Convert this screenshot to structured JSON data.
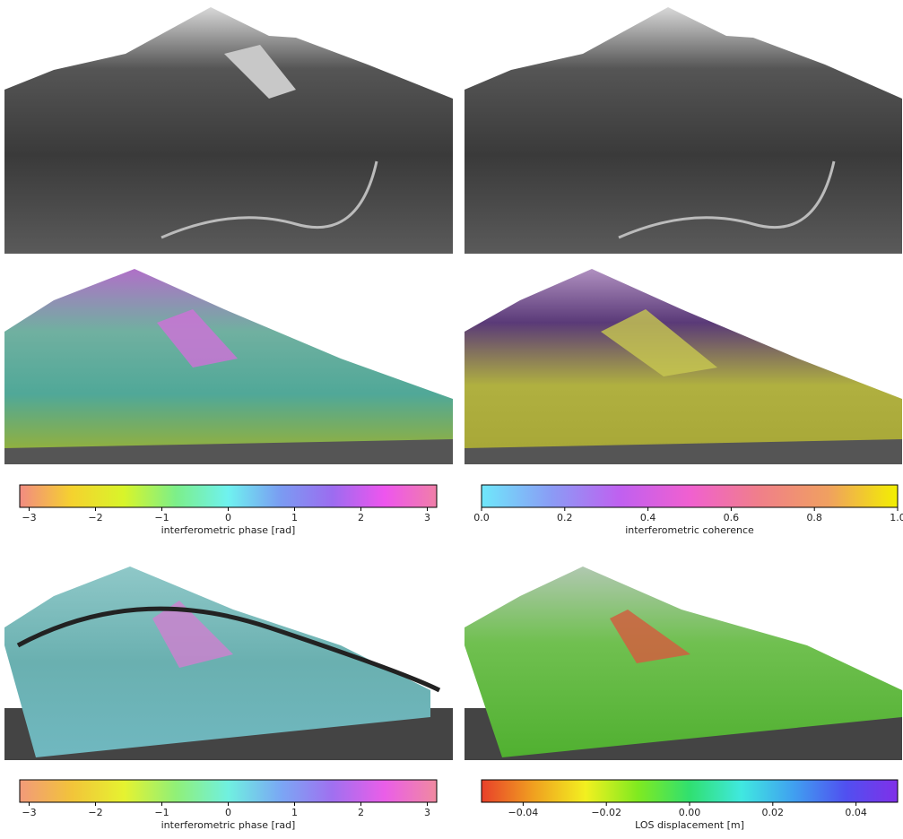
{
  "colorbars": [
    {
      "label": "interferometric phase [rad]",
      "lim": [
        -3.14159,
        3.14159
      ],
      "ticks": [
        {
          "value": -3,
          "label": "−3"
        },
        {
          "value": -2,
          "label": "−2"
        },
        {
          "value": -1,
          "label": "−1"
        },
        0,
        1,
        2,
        3
      ],
      "colors": [
        "#f28b82",
        "#f5d22e",
        "#d8f52a",
        "#7cef8a",
        "#6ff2f0",
        "#7a9cf2",
        "#9c6cf0",
        "#ee55ee",
        "#f07fa8"
      ]
    },
    {
      "label": "interferometric coherence",
      "lim": [
        0,
        1
      ],
      "ticks": [
        {
          "value": 0,
          "label": "0.0"
        },
        {
          "value": 0.2,
          "label": "0.2"
        },
        {
          "value": 0.4,
          "label": "0.4"
        },
        {
          "value": 0.6,
          "label": "0.6"
        },
        {
          "value": 0.8,
          "label": "0.8"
        },
        {
          "value": 1,
          "label": "1.0"
        }
      ],
      "colors": [
        "#6fe8fb",
        "#8a9cf5",
        "#c060f0",
        "#f060d0",
        "#f07f8a",
        "#f0a060",
        "#f2f000"
      ]
    },
    {
      "label": "interferometric phase [rad]",
      "lim": [
        -3.14159,
        3.14159
      ],
      "ticks": [
        {
          "value": -3,
          "label": "−3"
        },
        {
          "value": -2,
          "label": "−2"
        },
        {
          "value": -1,
          "label": "−1"
        },
        0,
        1,
        2,
        3
      ],
      "colors": [
        "#f29a7a",
        "#f2c43a",
        "#e6f230",
        "#90f078",
        "#70f0e0",
        "#7aa8f4",
        "#a070f0",
        "#ea5ee8",
        "#f08aa0"
      ]
    },
    {
      "label": "LOS displacement [m]",
      "lim": [
        -0.05,
        0.05
      ],
      "ticks": [
        {
          "value": -0.04,
          "label": "−0.04"
        },
        {
          "value": -0.02,
          "label": "−0.02"
        },
        {
          "value": 0,
          "label": "0.00"
        },
        {
          "value": 0.02,
          "label": "0.02"
        },
        {
          "value": 0.04,
          "label": "0.04"
        }
      ],
      "colors": [
        "#e8402a",
        "#f0a020",
        "#f2f020",
        "#80ea20",
        "#30e070",
        "#40e8e0",
        "#40a0f0",
        "#5050f0",
        "#8030e8"
      ]
    }
  ]
}
